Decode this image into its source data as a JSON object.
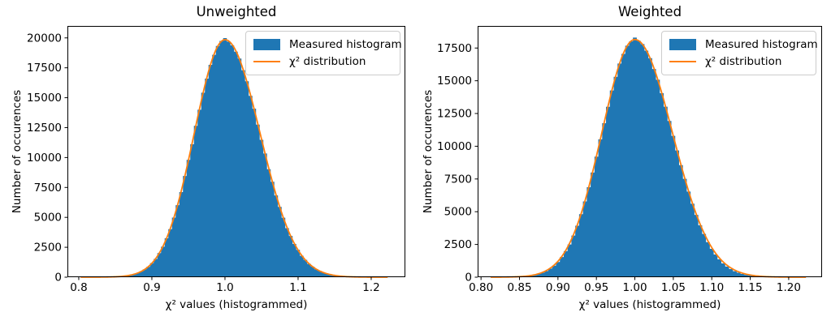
{
  "figure": {
    "background": "#ffffff",
    "text_color": "#000000"
  },
  "chart_data": [
    {
      "type": "histogram+line",
      "title": "Unweighted",
      "xlabel": "χ² values (histogrammed)",
      "ylabel": "Number of occurences",
      "legend": {
        "position": "upper right",
        "entries": [
          {
            "label": "Measured histogram",
            "kind": "patch",
            "color": "#1f77b4"
          },
          {
            "label": "χ² distribution",
            "kind": "line",
            "color": "#ff7f0e"
          }
        ]
      },
      "colors": {
        "bar": "#1f77b4",
        "curve": "#ff7f0e",
        "spine": "#000000"
      },
      "xlim": [
        0.7845,
        1.2467
      ],
      "ylim": [
        0,
        21000
      ],
      "xticks": {
        "values": [
          0.8,
          0.9,
          1.0,
          1.1,
          1.2
        ],
        "labels": [
          "0.8",
          "0.9",
          "1.0",
          "1.1",
          "1.2"
        ]
      },
      "yticks": {
        "values": [
          0,
          2500,
          5000,
          7500,
          10000,
          12500,
          15000,
          17500,
          20000
        ],
        "labels": [
          "0",
          "2500",
          "5000",
          "7500",
          "10000",
          "12500",
          "15000",
          "17500",
          "20000"
        ]
      },
      "bins": {
        "start": 0.8025,
        "width": 0.005,
        "count": 84
      },
      "counts": [
        1,
        1,
        1,
        2,
        4,
        5,
        9,
        13,
        21,
        35,
        50,
        79,
        111,
        168,
        239,
        331,
        472,
        648,
        862,
        1179,
        1528,
        2012,
        2549,
        3248,
        4011,
        4980,
        6022,
        7116,
        8460,
        9802,
        11110,
        12650,
        14000,
        15420,
        16600,
        17750,
        18590,
        19320,
        19750,
        19980,
        19700,
        19380,
        18850,
        18270,
        17300,
        16380,
        15160,
        14080,
        12750,
        11480,
        10340,
        9030,
        7980,
        6830,
        5880,
        4970,
        4100,
        3450,
        2780,
        2290,
        1790,
        1450,
        1110,
        880,
        660,
        515,
        370,
        285,
        210,
        148,
        110,
        75,
        56,
        37,
        27,
        17,
        13,
        8,
        5,
        4,
        3,
        2,
        1,
        1
      ],
      "curve": {
        "shape": "asymmetric-gaussian",
        "mean": 1.0,
        "sigma_left": 0.042,
        "sigma_right": 0.048,
        "amplitude": 19850
      }
    },
    {
      "type": "histogram+line",
      "title": "Weighted",
      "xlabel": "χ² values (histogrammed)",
      "ylabel": "Number of occurences",
      "legend": {
        "position": "upper right",
        "entries": [
          {
            "label": "Measured histogram",
            "kind": "patch",
            "color": "#1f77b4"
          },
          {
            "label": "χ² distribution",
            "kind": "line",
            "color": "#ff7f0e"
          }
        ]
      },
      "colors": {
        "bar": "#1f77b4",
        "curve": "#ff7f0e",
        "spine": "#000000"
      },
      "xlim": [
        0.7956,
        1.2434
      ],
      "ylim": [
        0,
        19187
      ],
      "xticks": {
        "values": [
          0.8,
          0.85,
          0.9,
          0.95,
          1.0,
          1.05,
          1.1,
          1.15,
          1.2
        ],
        "labels": [
          "0.80",
          "0.85",
          "0.90",
          "0.95",
          "1.00",
          "1.05",
          "1.10",
          "1.15",
          "1.20"
        ]
      },
      "yticks": {
        "values": [
          0,
          2500,
          5000,
          7500,
          10000,
          12500,
          15000,
          17500
        ],
        "labels": [
          "0",
          "2500",
          "5000",
          "7500",
          "10000",
          "12500",
          "15000",
          "17500"
        ]
      },
      "bins": {
        "start": 0.8125,
        "width": 0.005,
        "count": 82
      },
      "counts": [
        1,
        3,
        4,
        6,
        10,
        14,
        24,
        37,
        52,
        82,
        115,
        174,
        246,
        348,
        470,
        655,
        880,
        1160,
        1540,
        1985,
        2500,
        3180,
        3930,
        4810,
        5790,
        6870,
        7990,
        9210,
        10530,
        11760,
        13010,
        14260,
        15300,
        16320,
        17050,
        17680,
        18010,
        18300,
        18060,
        17800,
        17300,
        16730,
        15900,
        15080,
        14050,
        13020,
        11930,
        10790,
        9680,
        8560,
        7510,
        6540,
        5610,
        4760,
        3960,
        3300,
        2680,
        2170,
        1730,
        1360,
        1050,
        815,
        620,
        460,
        345,
        250,
        180,
        128,
        90,
        63,
        44,
        30,
        20,
        13,
        9,
        5,
        4,
        2,
        2,
        1,
        1,
        0
      ],
      "curve": {
        "shape": "asymmetric-gaussian",
        "mean": 1.0,
        "sigma_left": 0.043,
        "sigma_right": 0.049,
        "amplitude": 18150
      }
    }
  ]
}
